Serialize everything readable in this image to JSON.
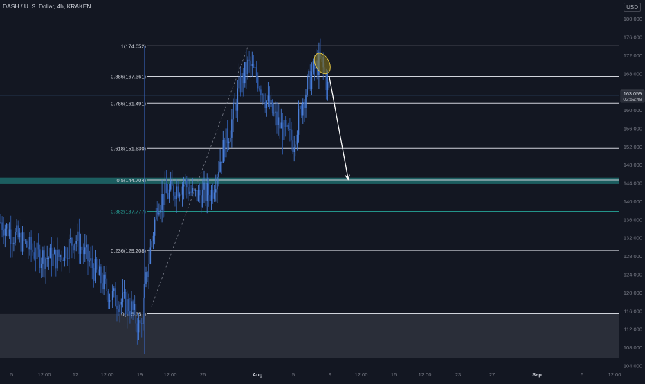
{
  "header": {
    "title": "DASH / U. S. Dollar, 4h, KRAKEN",
    "currency": "USD"
  },
  "price_label": {
    "price": "163.059",
    "countdown": "02:59:48"
  },
  "colors": {
    "background": "#131722",
    "candle_up": "#4a7ed6",
    "candle_down": "#2f5aa8",
    "fib_line": "#d1d4dc",
    "fib_teal": "#26a69a",
    "zone_teal": "#1e6b6b",
    "zone_grey": "#2a2e39",
    "axis_text": "#787b86",
    "ellipse_fill": "#8a7a1f",
    "ellipse_stroke": "#e0c341",
    "arrow": "#ffffff",
    "marker_line": "#3d6fd1"
  },
  "chart_data": {
    "type": "candlestick",
    "title": "DASH / U. S. Dollar, 4h, KRAKEN",
    "ylim": [
      103,
      182
    ],
    "y_ticks": [
      "104.000",
      "108.000",
      "112.000",
      "116.000",
      "120.000",
      "124.000",
      "128.000",
      "132.000",
      "136.000",
      "140.000",
      "144.000",
      "148.000",
      "152.000",
      "156.000",
      "160.000",
      "164.000",
      "168.000",
      "172.000",
      "176.000",
      "180.000"
    ],
    "x_ticks": [
      "5",
      "12:00",
      "12",
      "12:00",
      "19",
      "12:00",
      "26",
      "Aug",
      "5",
      "9",
      "12:00",
      "16",
      "12:00",
      "23",
      "27",
      "Sep",
      "6",
      "12:00"
    ],
    "x_ticks_bold": [
      "Aug",
      "Sep"
    ],
    "grid": false,
    "current_price": 163.059,
    "fib_levels": [
      {
        "ratio": "1",
        "label": "1(174.052)",
        "value": 174.052,
        "teal": false
      },
      {
        "ratio": "0.886",
        "label": "0.886(167.361)",
        "value": 167.361,
        "teal": false
      },
      {
        "ratio": "0.786",
        "label": "0.786(161.491)",
        "value": 161.491,
        "teal": false
      },
      {
        "ratio": "0.618",
        "label": "0.618(151.630)",
        "value": 151.63,
        "teal": false
      },
      {
        "ratio": "0.5",
        "label": "0.5(144.704)",
        "value": 144.704,
        "teal": false
      },
      {
        "ratio": "0.382",
        "label": "0.382(137.777)",
        "value": 137.777,
        "teal": true
      },
      {
        "ratio": "0.236",
        "label": "0.236(129.208)",
        "value": 129.208,
        "teal": false
      },
      {
        "ratio": "0",
        "label": "0(115.351)",
        "value": 115.351,
        "teal": false
      }
    ],
    "zones": [
      {
        "name": "support-zone-teal",
        "from": 143.8,
        "to": 145.2
      },
      {
        "name": "demand-zone-grey",
        "from": 105.7,
        "to": 115.3
      }
    ],
    "projection": {
      "from_date": "Aug 8",
      "from_price": 167.4,
      "to_date": "Aug 11",
      "to_price": 144.8
    },
    "price_series": [
      {
        "date": "Jul 1",
        "close": 136
      },
      {
        "date": "Jul 3",
        "close": 137
      },
      {
        "date": "Jul 5",
        "close": 133
      },
      {
        "date": "Jul 8",
        "close": 128
      },
      {
        "date": "Jul 10",
        "close": 127.5
      },
      {
        "date": "Jul 12",
        "close": 132
      },
      {
        "date": "Jul 14",
        "close": 125
      },
      {
        "date": "Jul 16",
        "close": 119
      },
      {
        "date": "Jul 18",
        "close": 117
      },
      {
        "date": "Jul 19",
        "close": 112
      },
      {
        "date": "Jul 20",
        "close": 127
      },
      {
        "date": "Jul 21",
        "close": 140
      },
      {
        "date": "Jul 23",
        "close": 143
      },
      {
        "date": "Jul 24",
        "close": 144
      },
      {
        "date": "Jul 25",
        "close": 141
      },
      {
        "date": "Jul 27",
        "close": 142
      },
      {
        "date": "Jul 28",
        "close": 150
      },
      {
        "date": "Jul 29",
        "close": 156
      },
      {
        "date": "Jul 30",
        "close": 165
      },
      {
        "date": "Jul 31",
        "close": 170
      },
      {
        "date": "Aug 1",
        "close": 167
      },
      {
        "date": "Aug 2",
        "close": 162
      },
      {
        "date": "Aug 3",
        "close": 158
      },
      {
        "date": "Aug 4",
        "close": 155
      },
      {
        "date": "Aug 5",
        "close": 153
      },
      {
        "date": "Aug 6",
        "close": 162
      },
      {
        "date": "Aug 7",
        "close": 168
      },
      {
        "date": "Aug 8",
        "close": 171
      },
      {
        "date": "Aug 9",
        "close": 163
      }
    ]
  }
}
